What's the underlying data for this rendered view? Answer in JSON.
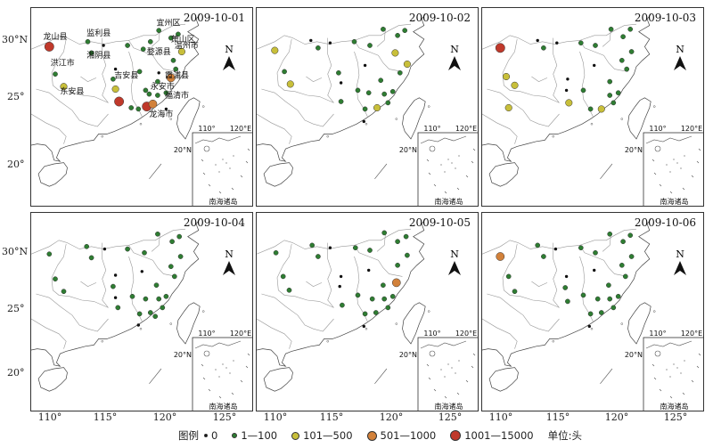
{
  "legend": {
    "title": "图例",
    "items": [
      {
        "label": "0",
        "color": "#111111",
        "size": 3
      },
      {
        "label": "1—100",
        "color": "#2e7d32",
        "size": 5
      },
      {
        "label": "101—500",
        "color": "#c8bf3a",
        "size": 8
      },
      {
        "label": "501—1000",
        "color": "#d2813a",
        "size": 10
      },
      {
        "label": "1001—15000",
        "color": "#c0392b",
        "size": 12
      }
    ],
    "unit": "单位:头"
  },
  "axes": {
    "lat_ticks": [
      "30°N",
      "25°",
      "20°"
    ],
    "lon_ticks": [
      "110°",
      "115°",
      "120°",
      "125°"
    ]
  },
  "north_label": "N",
  "inset": {
    "title": "南海诸岛",
    "lon_ticks": [
      "110°",
      "120°E"
    ],
    "lat_tick": "20°N"
  },
  "place_names": [
    {
      "name": "宜州区"
    },
    {
      "name": "监利县"
    },
    {
      "name": "萧山区"
    },
    {
      "name": "龙山县"
    },
    {
      "name": "婺源县"
    },
    {
      "name": "温州市"
    },
    {
      "name": "洪江市"
    },
    {
      "name": "湘阴县"
    },
    {
      "name": "霞浦县"
    },
    {
      "name": "东安县"
    },
    {
      "name": "吉安县"
    },
    {
      "name": "永安市"
    },
    {
      "name": "福清市"
    },
    {
      "name": "龙海市"
    }
  ],
  "panels": [
    {
      "date": "2009-10-01",
      "points": [
        {
          "lon": 109.5,
          "lat": 29.4,
          "cls": 4
        },
        {
          "lon": 110.0,
          "lat": 27.2,
          "cls": 1
        },
        {
          "lon": 110.7,
          "lat": 26.2,
          "cls": 2
        },
        {
          "lon": 112.7,
          "lat": 29.8,
          "cls": 1
        },
        {
          "lon": 113.0,
          "lat": 28.9,
          "cls": 1
        },
        {
          "lon": 114.0,
          "lat": 29.5,
          "cls": 0
        },
        {
          "lon": 115.0,
          "lat": 27.6,
          "cls": 0
        },
        {
          "lon": 114.8,
          "lat": 26.8,
          "cls": 1
        },
        {
          "lon": 115.0,
          "lat": 26.0,
          "cls": 2
        },
        {
          "lon": 115.3,
          "lat": 25.0,
          "cls": 4
        },
        {
          "lon": 116.0,
          "lat": 29.5,
          "cls": 1
        },
        {
          "lon": 117.3,
          "lat": 29.2,
          "cls": 1
        },
        {
          "lon": 117.9,
          "lat": 29.8,
          "cls": 1
        },
        {
          "lon": 118.6,
          "lat": 30.7,
          "cls": 1
        },
        {
          "lon": 119.6,
          "lat": 30.1,
          "cls": 1
        },
        {
          "lon": 120.2,
          "lat": 30.4,
          "cls": 1
        },
        {
          "lon": 120.5,
          "lat": 29.0,
          "cls": 2
        },
        {
          "lon": 119.8,
          "lat": 28.3,
          "cls": 1
        },
        {
          "lon": 120.0,
          "lat": 27.6,
          "cls": 1
        },
        {
          "lon": 119.6,
          "lat": 26.9,
          "cls": 3
        },
        {
          "lon": 118.5,
          "lat": 26.6,
          "cls": 1
        },
        {
          "lon": 117.8,
          "lat": 25.6,
          "cls": 1
        },
        {
          "lon": 118.5,
          "lat": 25.5,
          "cls": 1
        },
        {
          "lon": 119.2,
          "lat": 25.7,
          "cls": 1
        },
        {
          "lon": 117.6,
          "lat": 24.6,
          "cls": 4
        },
        {
          "lon": 118.1,
          "lat": 24.8,
          "cls": 3
        },
        {
          "lon": 116.9,
          "lat": 24.4,
          "cls": 1
        },
        {
          "lon": 116.3,
          "lat": 24.5,
          "cls": 1
        },
        {
          "lon": 117.0,
          "lat": 27.4,
          "cls": 1
        },
        {
          "lon": 117.5,
          "lat": 25.9,
          "cls": 1
        },
        {
          "lon": 119.2,
          "lat": 24.4,
          "cls": 0
        },
        {
          "lon": 118.6,
          "lat": 27.3,
          "cls": 0
        }
      ]
    },
    {
      "date": "2009-10-02",
      "points": [
        {
          "lon": 109.5,
          "lat": 29.1,
          "cls": 2
        },
        {
          "lon": 110.3,
          "lat": 27.4,
          "cls": 1
        },
        {
          "lon": 110.8,
          "lat": 26.4,
          "cls": 2
        },
        {
          "lon": 112.5,
          "lat": 29.9,
          "cls": 0
        },
        {
          "lon": 113.1,
          "lat": 29.3,
          "cls": 1
        },
        {
          "lon": 114.1,
          "lat": 29.7,
          "cls": 0
        },
        {
          "lon": 114.8,
          "lat": 27.3,
          "cls": 1
        },
        {
          "lon": 115.0,
          "lat": 26.5,
          "cls": 0
        },
        {
          "lon": 115.0,
          "lat": 25.0,
          "cls": 1
        },
        {
          "lon": 116.1,
          "lat": 29.8,
          "cls": 1
        },
        {
          "lon": 117.4,
          "lat": 29.5,
          "cls": 1
        },
        {
          "lon": 118.5,
          "lat": 30.8,
          "cls": 1
        },
        {
          "lon": 119.7,
          "lat": 30.3,
          "cls": 1
        },
        {
          "lon": 120.3,
          "lat": 30.7,
          "cls": 1
        },
        {
          "lon": 119.5,
          "lat": 28.9,
          "cls": 2
        },
        {
          "lon": 120.5,
          "lat": 28.0,
          "cls": 2
        },
        {
          "lon": 119.9,
          "lat": 27.3,
          "cls": 1
        },
        {
          "lon": 118.3,
          "lat": 26.7,
          "cls": 1
        },
        {
          "lon": 117.3,
          "lat": 25.7,
          "cls": 1
        },
        {
          "lon": 118.6,
          "lat": 25.6,
          "cls": 1
        },
        {
          "lon": 119.3,
          "lat": 25.8,
          "cls": 1
        },
        {
          "lon": 118.0,
          "lat": 24.5,
          "cls": 2
        },
        {
          "lon": 117.0,
          "lat": 24.4,
          "cls": 1
        },
        {
          "lon": 116.4,
          "lat": 25.9,
          "cls": 1
        },
        {
          "lon": 117.0,
          "lat": 27.9,
          "cls": 0
        },
        {
          "lon": 118.9,
          "lat": 24.9,
          "cls": 1
        },
        {
          "lon": 116.9,
          "lat": 23.4,
          "cls": 0
        }
      ]
    },
    {
      "date": "2009-10-03",
      "points": [
        {
          "lon": 109.5,
          "lat": 29.3,
          "cls": 4
        },
        {
          "lon": 110.0,
          "lat": 27.0,
          "cls": 2
        },
        {
          "lon": 110.7,
          "lat": 26.3,
          "cls": 2
        },
        {
          "lon": 110.2,
          "lat": 24.5,
          "cls": 2
        },
        {
          "lon": 112.6,
          "lat": 29.9,
          "cls": 0
        },
        {
          "lon": 113.1,
          "lat": 29.3,
          "cls": 1
        },
        {
          "lon": 114.2,
          "lat": 29.7,
          "cls": 0
        },
        {
          "lon": 115.1,
          "lat": 26.8,
          "cls": 0
        },
        {
          "lon": 115.0,
          "lat": 25.9,
          "cls": 0
        },
        {
          "lon": 115.2,
          "lat": 24.9,
          "cls": 2
        },
        {
          "lon": 116.2,
          "lat": 29.7,
          "cls": 1
        },
        {
          "lon": 117.4,
          "lat": 29.5,
          "cls": 1
        },
        {
          "lon": 118.7,
          "lat": 30.8,
          "cls": 1
        },
        {
          "lon": 119.7,
          "lat": 30.2,
          "cls": 1
        },
        {
          "lon": 120.3,
          "lat": 30.8,
          "cls": 1
        },
        {
          "lon": 120.4,
          "lat": 29.0,
          "cls": 1
        },
        {
          "lon": 119.6,
          "lat": 28.3,
          "cls": 1
        },
        {
          "lon": 120.0,
          "lat": 27.6,
          "cls": 1
        },
        {
          "lon": 118.6,
          "lat": 26.6,
          "cls": 1
        },
        {
          "lon": 117.9,
          "lat": 24.4,
          "cls": 2
        },
        {
          "lon": 117.0,
          "lat": 24.4,
          "cls": 1
        },
        {
          "lon": 118.6,
          "lat": 25.5,
          "cls": 1
        },
        {
          "lon": 119.3,
          "lat": 25.7,
          "cls": 1
        },
        {
          "lon": 117.3,
          "lat": 27.9,
          "cls": 0
        },
        {
          "lon": 116.4,
          "lat": 25.9,
          "cls": 1
        },
        {
          "lon": 118.9,
          "lat": 24.9,
          "cls": 1
        }
      ]
    },
    {
      "date": "2009-10-04",
      "points": [
        {
          "lon": 109.5,
          "lat": 29.2,
          "cls": 1
        },
        {
          "lon": 110.0,
          "lat": 27.2,
          "cls": 1
        },
        {
          "lon": 110.7,
          "lat": 26.2,
          "cls": 1
        },
        {
          "lon": 112.6,
          "lat": 29.8,
          "cls": 1
        },
        {
          "lon": 113.0,
          "lat": 28.9,
          "cls": 1
        },
        {
          "lon": 114.1,
          "lat": 29.6,
          "cls": 0
        },
        {
          "lon": 115.0,
          "lat": 27.5,
          "cls": 0
        },
        {
          "lon": 114.8,
          "lat": 26.6,
          "cls": 1
        },
        {
          "lon": 115.0,
          "lat": 25.7,
          "cls": 0
        },
        {
          "lon": 115.2,
          "lat": 24.9,
          "cls": 1
        },
        {
          "lon": 116.0,
          "lat": 29.6,
          "cls": 1
        },
        {
          "lon": 117.4,
          "lat": 29.3,
          "cls": 1
        },
        {
          "lon": 118.5,
          "lat": 30.8,
          "cls": 1
        },
        {
          "lon": 119.7,
          "lat": 30.2,
          "cls": 1
        },
        {
          "lon": 120.3,
          "lat": 30.6,
          "cls": 1
        },
        {
          "lon": 120.4,
          "lat": 29.0,
          "cls": 1
        },
        {
          "lon": 119.6,
          "lat": 28.2,
          "cls": 1
        },
        {
          "lon": 119.9,
          "lat": 27.4,
          "cls": 1
        },
        {
          "lon": 118.4,
          "lat": 26.7,
          "cls": 1
        },
        {
          "lon": 117.5,
          "lat": 25.6,
          "cls": 1
        },
        {
          "lon": 118.6,
          "lat": 25.6,
          "cls": 1
        },
        {
          "lon": 119.2,
          "lat": 25.8,
          "cls": 1
        },
        {
          "lon": 117.9,
          "lat": 24.5,
          "cls": 1
        },
        {
          "lon": 117.0,
          "lat": 24.4,
          "cls": 1
        },
        {
          "lon": 116.4,
          "lat": 25.8,
          "cls": 1
        },
        {
          "lon": 118.9,
          "lat": 24.9,
          "cls": 1
        },
        {
          "lon": 117.2,
          "lat": 27.8,
          "cls": 0
        },
        {
          "lon": 116.9,
          "lat": 23.5,
          "cls": 0
        },
        {
          "lon": 118.3,
          "lat": 24.2,
          "cls": 1
        }
      ]
    },
    {
      "date": "2009-10-05",
      "points": [
        {
          "lon": 109.6,
          "lat": 29.3,
          "cls": 1
        },
        {
          "lon": 110.2,
          "lat": 27.4,
          "cls": 1
        },
        {
          "lon": 110.7,
          "lat": 26.3,
          "cls": 1
        },
        {
          "lon": 112.6,
          "lat": 29.9,
          "cls": 1
        },
        {
          "lon": 113.1,
          "lat": 29.0,
          "cls": 1
        },
        {
          "lon": 114.1,
          "lat": 29.7,
          "cls": 0
        },
        {
          "lon": 115.0,
          "lat": 27.4,
          "cls": 0
        },
        {
          "lon": 114.9,
          "lat": 26.6,
          "cls": 0
        },
        {
          "lon": 115.1,
          "lat": 25.1,
          "cls": 1
        },
        {
          "lon": 116.2,
          "lat": 29.7,
          "cls": 1
        },
        {
          "lon": 117.4,
          "lat": 29.5,
          "cls": 1
        },
        {
          "lon": 118.6,
          "lat": 30.9,
          "cls": 1
        },
        {
          "lon": 119.7,
          "lat": 30.2,
          "cls": 1
        },
        {
          "lon": 120.4,
          "lat": 30.6,
          "cls": 1
        },
        {
          "lon": 120.5,
          "lat": 29.1,
          "cls": 1
        },
        {
          "lon": 119.7,
          "lat": 28.3,
          "cls": 1
        },
        {
          "lon": 119.6,
          "lat": 26.9,
          "cls": 3
        },
        {
          "lon": 118.5,
          "lat": 26.7,
          "cls": 1
        },
        {
          "lon": 117.6,
          "lat": 25.6,
          "cls": 1
        },
        {
          "lon": 118.6,
          "lat": 25.6,
          "cls": 1
        },
        {
          "lon": 119.3,
          "lat": 25.8,
          "cls": 1
        },
        {
          "lon": 117.9,
          "lat": 24.5,
          "cls": 1
        },
        {
          "lon": 117.0,
          "lat": 24.4,
          "cls": 1
        },
        {
          "lon": 116.4,
          "lat": 25.9,
          "cls": 1
        },
        {
          "lon": 118.9,
          "lat": 24.9,
          "cls": 1
        },
        {
          "lon": 117.3,
          "lat": 27.9,
          "cls": 0
        },
        {
          "lon": 116.9,
          "lat": 23.4,
          "cls": 0
        }
      ]
    },
    {
      "date": "2009-10-06",
      "points": [
        {
          "lon": 109.5,
          "lat": 29.0,
          "cls": 3
        },
        {
          "lon": 110.2,
          "lat": 27.4,
          "cls": 1
        },
        {
          "lon": 110.7,
          "lat": 26.2,
          "cls": 1
        },
        {
          "lon": 112.6,
          "lat": 29.9,
          "cls": 1
        },
        {
          "lon": 113.1,
          "lat": 29.0,
          "cls": 1
        },
        {
          "lon": 114.1,
          "lat": 29.6,
          "cls": 0
        },
        {
          "lon": 115.0,
          "lat": 27.4,
          "cls": 0
        },
        {
          "lon": 114.9,
          "lat": 26.5,
          "cls": 1
        },
        {
          "lon": 115.1,
          "lat": 25.4,
          "cls": 1
        },
        {
          "lon": 116.2,
          "lat": 29.7,
          "cls": 1
        },
        {
          "lon": 117.4,
          "lat": 29.3,
          "cls": 1
        },
        {
          "lon": 118.6,
          "lat": 30.8,
          "cls": 1
        },
        {
          "lon": 119.7,
          "lat": 30.2,
          "cls": 1
        },
        {
          "lon": 120.3,
          "lat": 30.7,
          "cls": 1
        },
        {
          "lon": 120.4,
          "lat": 29.0,
          "cls": 1
        },
        {
          "lon": 119.6,
          "lat": 28.3,
          "cls": 1
        },
        {
          "lon": 119.9,
          "lat": 27.4,
          "cls": 1
        },
        {
          "lon": 118.5,
          "lat": 26.7,
          "cls": 1
        },
        {
          "lon": 117.6,
          "lat": 25.6,
          "cls": 1
        },
        {
          "lon": 118.6,
          "lat": 25.6,
          "cls": 1
        },
        {
          "lon": 119.3,
          "lat": 25.8,
          "cls": 1
        },
        {
          "lon": 117.9,
          "lat": 24.5,
          "cls": 1
        },
        {
          "lon": 117.0,
          "lat": 24.4,
          "cls": 1
        },
        {
          "lon": 116.4,
          "lat": 25.9,
          "cls": 1
        },
        {
          "lon": 118.9,
          "lat": 24.9,
          "cls": 1
        },
        {
          "lon": 117.3,
          "lat": 27.9,
          "cls": 0
        },
        {
          "lon": 116.9,
          "lat": 23.4,
          "cls": 0
        }
      ]
    }
  ]
}
